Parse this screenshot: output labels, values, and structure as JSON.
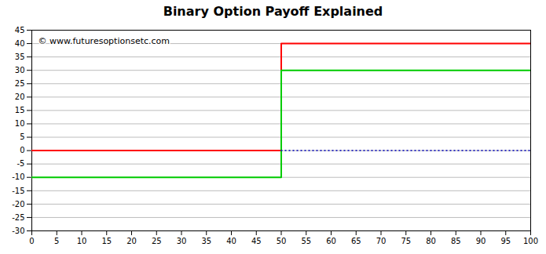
{
  "chart_data": {
    "type": "line",
    "title": "Binary Option Payoff Explained",
    "annotations": [
      {
        "text": "© www.futuresoptionsetc.com"
      }
    ],
    "series": [
      {
        "color": "#ff0000",
        "line_style": "solid",
        "x": [
          0,
          50,
          50,
          100
        ],
        "values": [
          0,
          0,
          40,
          40
        ]
      },
      {
        "color": "#00cc00",
        "line_style": "solid",
        "x": [
          0,
          50,
          50,
          100
        ],
        "values": [
          -10,
          -10,
          30,
          30
        ]
      },
      {
        "color": "#0000bb",
        "line_style": "dotted",
        "x": [
          50,
          100
        ],
        "values": [
          0,
          0
        ]
      }
    ],
    "xlim": [
      0,
      100
    ],
    "ylim": [
      -30,
      45
    ],
    "xticks": [
      0,
      5,
      10,
      15,
      20,
      25,
      30,
      35,
      40,
      45,
      50,
      55,
      60,
      65,
      70,
      75,
      80,
      85,
      90,
      95,
      100
    ],
    "yticks": [
      -30,
      -25,
      -20,
      -15,
      -10,
      -5,
      0,
      5,
      10,
      15,
      20,
      25,
      30,
      35,
      40,
      45
    ],
    "grid": "y"
  }
}
